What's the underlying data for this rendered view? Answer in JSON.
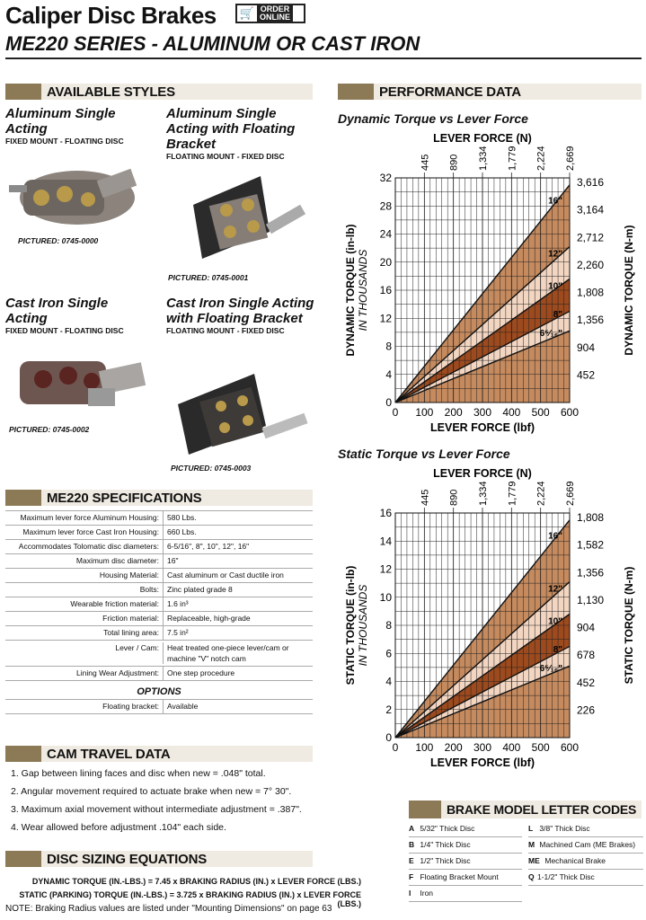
{
  "header": {
    "title": "Caliper Disc Brakes",
    "order_line1": "ORDER",
    "order_line2": "ONLINE",
    "subtitle": "ME220 SERIES - ALUMINUM OR CAST IRON"
  },
  "styles": {
    "heading": "AVAILABLE STYLES",
    "items": [
      {
        "name": "Aluminum Single Acting",
        "mount": "FIXED MOUNT - FLOATING DISC",
        "pictured": "PICTURED: 0745-0000"
      },
      {
        "name": "Aluminum Single Acting with Floating Bracket",
        "mount": "FLOATING MOUNT - FIXED DISC",
        "pictured": "PICTURED: 0745-0001"
      },
      {
        "name": "Cast Iron Single Acting",
        "mount": "FIXED MOUNT - FLOATING DISC",
        "pictured": "PICTURED: 0745-0002"
      },
      {
        "name": "Cast Iron Single Acting with Floating Bracket",
        "mount": "FLOATING MOUNT - FIXED DISC",
        "pictured": "PICTURED: 0745-0003"
      }
    ]
  },
  "specs": {
    "heading": "ME220 SPECIFICATIONS",
    "rows": [
      {
        "k": "Maximum lever force Aluminum Housing:",
        "v": "580 Lbs."
      },
      {
        "k": "Maximum lever force Cast Iron Housing:",
        "v": "660 Lbs."
      },
      {
        "k": "Accommodates Tolomatic disc diameters:",
        "v": "6-5/16\",  8\",  10\", 12\", 16\""
      },
      {
        "k": "Maximum disc diameter:",
        "v": "16\""
      },
      {
        "k": "Housing Material:",
        "v": "Cast aluminum or Cast ductile iron"
      },
      {
        "k": "Bolts:",
        "v": "Zinc plated grade 8"
      },
      {
        "k": "Wearable friction material:",
        "v": "1.6 in³"
      },
      {
        "k": "Friction material:",
        "v": "Replaceable, high-grade"
      },
      {
        "k": "Total lining area:",
        "v": "7.5 in²"
      },
      {
        "k": "Lever / Cam:",
        "v": "Heat treated one-piece lever/cam or machine \"V\" notch cam"
      },
      {
        "k": "Lining Wear Adjustment:",
        "v": "One step procedure"
      }
    ],
    "options_heading": "OPTIONS",
    "options": [
      {
        "k": "Floating bracket:",
        "v": "Available"
      }
    ]
  },
  "cam": {
    "heading": "CAM TRAVEL DATA",
    "items": [
      "1.  Gap between lining faces and disc when new = .048\" total.",
      "2.  Angular movement required to actuate brake when new = 7° 30\".",
      "3.  Maximum axial movement without intermediate adjustment = .387\".",
      "4.  Wear allowed before adjustment .104\" each side."
    ]
  },
  "disc": {
    "heading": "DISC SIZING EQUATIONS",
    "eq1": "DYNAMIC TORQUE (IN.-LBS.) = 7.45 x BRAKING RADIUS (IN.) x LEVER FORCE (LBS.)",
    "eq2": "STATIC (PARKING) TORQUE (IN.-LBS.) = 3.725 x BRAKING RADIUS (IN.) x LEVER FORCE (LBS.)",
    "note": "NOTE: Braking Radius values are listed under \"Mounting Dimensions\" on page 63"
  },
  "performance": {
    "heading": "PERFORMANCE DATA"
  },
  "chart_data": [
    {
      "type": "area",
      "title": "Dynamic Torque vs Lever Force",
      "xlabel": "LEVER FORCE (lbf)",
      "x2label": "LEVER FORCE (N)",
      "ylabel": "DYNAMIC TORQUE (in-lb)",
      "ylabel_sub": "IN THOUSANDS",
      "y2label": "DYNAMIC TORQUE (N-m)",
      "xlim": [
        0,
        600
      ],
      "ylim": [
        0,
        32
      ],
      "x_ticks": [
        0,
        100,
        200,
        300,
        400,
        500,
        600
      ],
      "y_ticks": [
        0,
        4,
        8,
        12,
        16,
        20,
        24,
        28,
        32
      ],
      "x2_ticks": [
        "445",
        "890",
        "1,334",
        "1,779",
        "2,224",
        "2,669"
      ],
      "y2_ticks": [
        "452",
        "904",
        "1,356",
        "1,808",
        "2,260",
        "2,712",
        "3,164",
        "3,616"
      ],
      "series": [
        {
          "name": "16\"",
          "x": [
            0,
            600
          ],
          "y": [
            0,
            31.0
          ]
        },
        {
          "name": "12\"",
          "x": [
            0,
            600
          ],
          "y": [
            0,
            22.2
          ]
        },
        {
          "name": "10\"",
          "x": [
            0,
            600
          ],
          "y": [
            0,
            17.6
          ]
        },
        {
          "name": "8\"",
          "x": [
            0,
            600
          ],
          "y": [
            0,
            13.0
          ]
        },
        {
          "name": "6⁵⁄₁₆\"",
          "x": [
            0,
            600
          ],
          "y": [
            0,
            10.2
          ]
        }
      ],
      "fills": [
        "#c58a5e",
        "#f3d6c2",
        "#9c4a1e",
        "#f3d6c2",
        "#c58a5e"
      ]
    },
    {
      "type": "area",
      "title": "Static Torque vs Lever Force",
      "xlabel": "LEVER FORCE (lbf)",
      "x2label": "LEVER FORCE (N)",
      "ylabel": "STATIC TORQUE (in-lb)",
      "ylabel_sub": "IN THOUSANDS",
      "y2label": "STATIC TORQUE (N-m)",
      "xlim": [
        0,
        600
      ],
      "ylim": [
        0,
        16
      ],
      "x_ticks": [
        0,
        100,
        200,
        300,
        400,
        500,
        600
      ],
      "y_ticks": [
        0,
        2,
        4,
        6,
        8,
        10,
        12,
        14,
        16
      ],
      "x2_ticks": [
        "445",
        "890",
        "1,334",
        "1,779",
        "2,224",
        "2,669"
      ],
      "y2_ticks": [
        "226",
        "452",
        "678",
        "904",
        "1,130",
        "1,356",
        "1,582",
        "1,808"
      ],
      "series": [
        {
          "name": "16\"",
          "x": [
            0,
            600
          ],
          "y": [
            0,
            15.5
          ]
        },
        {
          "name": "12\"",
          "x": [
            0,
            600
          ],
          "y": [
            0,
            11.1
          ]
        },
        {
          "name": "10\"",
          "x": [
            0,
            600
          ],
          "y": [
            0,
            8.8
          ]
        },
        {
          "name": "8\"",
          "x": [
            0,
            600
          ],
          "y": [
            0,
            6.5
          ]
        },
        {
          "name": "6⁵⁄₁₆\"",
          "x": [
            0,
            600
          ],
          "y": [
            0,
            5.1
          ]
        }
      ],
      "fills": [
        "#c58a5e",
        "#f3d6c2",
        "#9c4a1e",
        "#f3d6c2",
        "#c58a5e"
      ]
    }
  ],
  "codes": {
    "heading": "BRAKE MODEL LETTER CODES",
    "left": [
      {
        "c": "A",
        "d": "5/32\" Thick Disc"
      },
      {
        "c": "B",
        "d": "1/4\" Thick Disc"
      },
      {
        "c": "E",
        "d": "1/2\" Thick Disc"
      },
      {
        "c": "F",
        "d": "Floating Bracket Mount"
      },
      {
        "c": "I",
        "d": "Iron"
      }
    ],
    "right": [
      {
        "c": "L",
        "d": "3/8\" Thick Disc"
      },
      {
        "c": "M",
        "d": "Machined Cam (ME Brakes)"
      },
      {
        "c": "ME",
        "d": "Mechanical Brake"
      },
      {
        "c": "Q",
        "d": "1-1/2\" Thick Disc"
      }
    ]
  }
}
